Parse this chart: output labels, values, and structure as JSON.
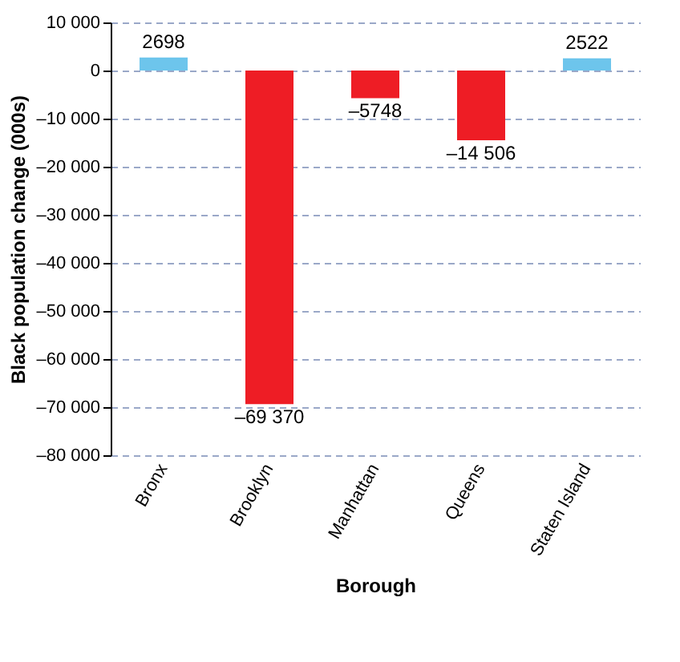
{
  "chart_data": {
    "type": "bar",
    "xlabel": "Borough",
    "ylabel": "Black population change (000s)",
    "categories": [
      "Bronx",
      "Brooklyn",
      "Manhattan",
      "Queens",
      "Staten Island"
    ],
    "values": [
      2698,
      -69370,
      -5748,
      -14506,
      2522
    ],
    "colors": [
      "#6dc5ec",
      "#ee1d25",
      "#ee1d25",
      "#ee1d25",
      "#6dc5ec"
    ],
    "value_labels": [
      "2698",
      "–69 370",
      "–5748",
      "–14 506",
      "2522"
    ],
    "ylim": [
      -80000,
      10000
    ],
    "yticks": [
      {
        "value": 10000,
        "label": "10 000"
      },
      0,
      {
        "value": -10000,
        "label": "–10 000"
      },
      {
        "value": -20000,
        "label": "–20 000"
      },
      {
        "value": -30000,
        "label": "–30 000"
      },
      {
        "value": -40000,
        "label": "–40 000"
      },
      {
        "value": -50000,
        "label": "–50 000"
      },
      {
        "value": -60000,
        "label": "–60 000"
      },
      {
        "value": -70000,
        "label": "–70 000"
      },
      {
        "value": -80000,
        "label": "–80 000"
      }
    ],
    "grid": "y"
  }
}
